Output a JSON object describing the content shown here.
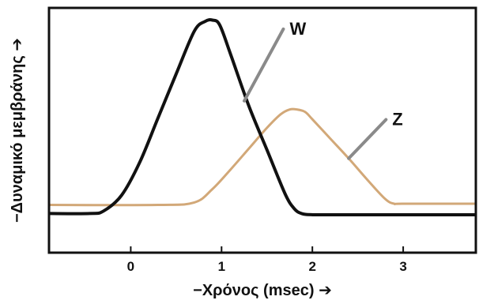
{
  "chart_data": {
    "type": "line",
    "title": "",
    "xlabel": "−Χρόνος (msec) ➔",
    "ylabel": "−Δυναμικό μεμβράνης ➔",
    "xlim": [
      -0.9,
      3.8
    ],
    "ylim": [
      0,
      1
    ],
    "xticks": [
      0,
      1,
      2,
      3
    ],
    "xtick_labels": [
      "0",
      "1",
      "2",
      "3"
    ],
    "yticks": [],
    "grid": false,
    "legend": "none",
    "series": [
      {
        "name": "W",
        "color": "#111111",
        "x": [
          -0.9,
          -0.45,
          -0.3,
          -0.1,
          0.1,
          0.3,
          0.5,
          0.7,
          0.82,
          0.9,
          0.98,
          1.1,
          1.3,
          1.5,
          1.7,
          1.8,
          1.88,
          2.0,
          2.3,
          3.0,
          3.8
        ],
        "y": [
          0.16,
          0.16,
          0.17,
          0.235,
          0.37,
          0.55,
          0.73,
          0.905,
          0.945,
          0.95,
          0.93,
          0.81,
          0.6,
          0.42,
          0.24,
          0.18,
          0.16,
          0.155,
          0.155,
          0.155,
          0.155
        ]
      },
      {
        "name": "Z",
        "color": "#d2a878",
        "x": [
          -0.9,
          0.3,
          0.7,
          0.9,
          1.1,
          1.3,
          1.5,
          1.65,
          1.75,
          1.83,
          1.92,
          2.0,
          2.2,
          2.4,
          2.6,
          2.8,
          2.9,
          3.0,
          3.8
        ],
        "y": [
          0.195,
          0.195,
          0.205,
          0.26,
          0.34,
          0.425,
          0.51,
          0.565,
          0.585,
          0.585,
          0.575,
          0.545,
          0.465,
          0.385,
          0.3,
          0.22,
          0.2,
          0.2,
          0.2
        ]
      }
    ],
    "annotations": [
      {
        "text": "W",
        "series": "W",
        "at_x": 1.25,
        "at_y": 0.62,
        "label_x": 1.75,
        "label_y": 0.92
      },
      {
        "text": "Z",
        "series": "Z",
        "at_x": 2.4,
        "at_y": 0.385,
        "label_x": 2.88,
        "label_y": 0.55
      }
    ]
  }
}
